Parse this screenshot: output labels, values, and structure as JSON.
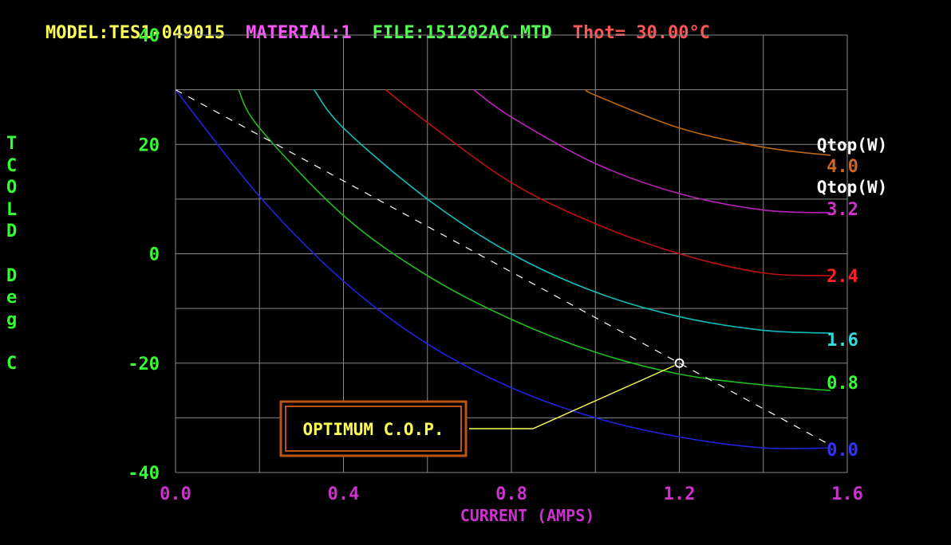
{
  "header": {
    "model": "MODEL:TES1-049015",
    "material": "MATERIAL:1",
    "file": "FILE:151202AC.MTD",
    "thot": "Thot= 30.00°C",
    "colors": {
      "model": "#ffff55",
      "material": "#ff55ff",
      "file": "#55ff55",
      "thot": "#ff5555"
    }
  },
  "ylabel_letters": [
    "T",
    "C",
    "O",
    "L",
    "D",
    "",
    "D",
    "e",
    "g",
    "",
    "C"
  ],
  "callout": {
    "text": "OPTIMUM C.O.P."
  },
  "chart_data": {
    "type": "line",
    "xlabel": "CURRENT (AMPS)",
    "ylabel": "TCOLD Deg C",
    "xlim": [
      0.0,
      1.6
    ],
    "ylim": [
      -40,
      40
    ],
    "x_ticks": [
      "0.0",
      "0.4",
      "0.8",
      "1.2",
      "1.6"
    ],
    "y_ticks": [
      "40",
      "20",
      "0",
      "-20",
      "-40"
    ],
    "grid": true,
    "legend_title": "Qtop(W)",
    "series": [
      {
        "name": "0.0",
        "color": "#2222dd",
        "label_color": "#3333ff",
        "x": [
          0.0,
          0.2,
          0.4,
          0.6,
          0.8,
          1.0,
          1.2,
          1.4,
          1.56
        ],
        "y": [
          30,
          10.5,
          -5,
          -16.5,
          -24.5,
          -30,
          -33.5,
          -35.5,
          -35.5
        ]
      },
      {
        "name": "0.8",
        "color": "#22bb22",
        "label_color": "#33ff33",
        "x": [
          0.15,
          0.2,
          0.4,
          0.6,
          0.8,
          1.0,
          1.2,
          1.4,
          1.56
        ],
        "y": [
          30,
          23,
          7,
          -4,
          -12,
          -18,
          -22,
          -24,
          -25
        ]
      },
      {
        "name": "1.6",
        "color": "#11bbbb",
        "label_color": "#33dddd",
        "x": [
          0.33,
          0.4,
          0.6,
          0.8,
          1.0,
          1.2,
          1.4,
          1.56
        ],
        "y": [
          30,
          23,
          10,
          0,
          -7,
          -11.5,
          -14,
          -14.5
        ]
      },
      {
        "name": "2.4",
        "color": "#bb1111",
        "label_color": "#ff2222",
        "x": [
          0.5,
          0.6,
          0.8,
          1.0,
          1.2,
          1.4,
          1.56
        ],
        "y": [
          30,
          24,
          13,
          5.5,
          0,
          -3.5,
          -4
        ]
      },
      {
        "name": "3.2",
        "color": "#bb22bb",
        "label_color": "#cc33cc",
        "x": [
          0.71,
          0.8,
          1.0,
          1.2,
          1.4,
          1.56
        ],
        "y": [
          30,
          25,
          16.5,
          11,
          8,
          7.5
        ]
      },
      {
        "name": "4.0",
        "color": "#bb6611",
        "label_color": "#cc6622",
        "x": [
          0.98,
          1.0,
          1.2,
          1.4,
          1.56
        ],
        "y": [
          30,
          29,
          23,
          19.5,
          18
        ]
      }
    ],
    "cop_line": {
      "color": "#ffffff",
      "x": [
        0.0,
        1.56
      ],
      "y": [
        30,
        -35
      ]
    },
    "optimum_point": {
      "x": 1.2,
      "y": -20
    },
    "colors": {
      "axis_text": "#33ff33",
      "x_text": "#cc33cc",
      "legend_title": "#ffffff",
      "grid": "#888888",
      "callout": "#ffff55",
      "callout_border": "#bb5511"
    }
  }
}
